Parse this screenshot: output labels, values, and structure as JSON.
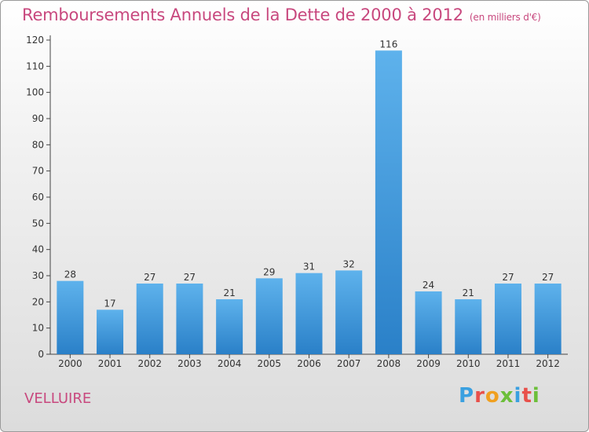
{
  "title": "Remboursements Annuels de la Dette de 2000 à 2012",
  "unit": "(en milliers d'€)",
  "commune": "VELLUIRE",
  "logo": {
    "letters": [
      "P",
      "r",
      "o",
      "x",
      "i",
      "t",
      "i"
    ],
    "colors": [
      "#3aa0e0",
      "#e8504a",
      "#f0a020",
      "#6cbf3a",
      "#3aa0e0",
      "#e8504a",
      "#6cbf3a"
    ]
  },
  "colors": {
    "bar": "#3a96dc",
    "title": "#c8487e"
  },
  "chart_data": {
    "type": "bar",
    "categories": [
      "2000",
      "2001",
      "2002",
      "2003",
      "2004",
      "2005",
      "2006",
      "2007",
      "2008",
      "2009",
      "2010",
      "2011",
      "2012"
    ],
    "values": [
      28,
      17,
      27,
      27,
      21,
      29,
      31,
      32,
      116,
      24,
      21,
      27,
      27
    ],
    "title": "Remboursements Annuels de la Dette de 2000 à 2012",
    "ylim": [
      0,
      120
    ],
    "yticks": [
      0,
      10,
      20,
      30,
      40,
      50,
      60,
      70,
      80,
      90,
      100,
      110,
      120
    ],
    "grid": false,
    "data_labels": true
  }
}
